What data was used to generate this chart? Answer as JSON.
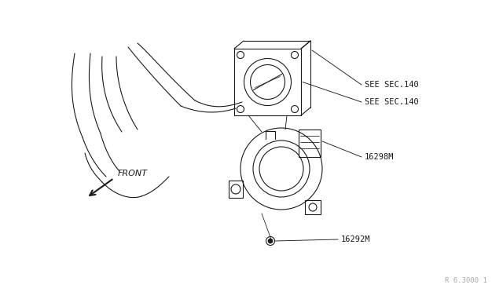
{
  "bg_color": "#ffffff",
  "line_color": "#1a1a1a",
  "text_color": "#1a1a1a",
  "fig_width": 6.4,
  "fig_height": 3.72,
  "dpi": 100,
  "watermark": "R 6.3000 1",
  "labels": {
    "sec140_top": "SEE SEC.140",
    "sec140_bot": "SEE SEC.140",
    "part16298": "16298M",
    "part16292": "16292M",
    "front": "FRONT"
  }
}
